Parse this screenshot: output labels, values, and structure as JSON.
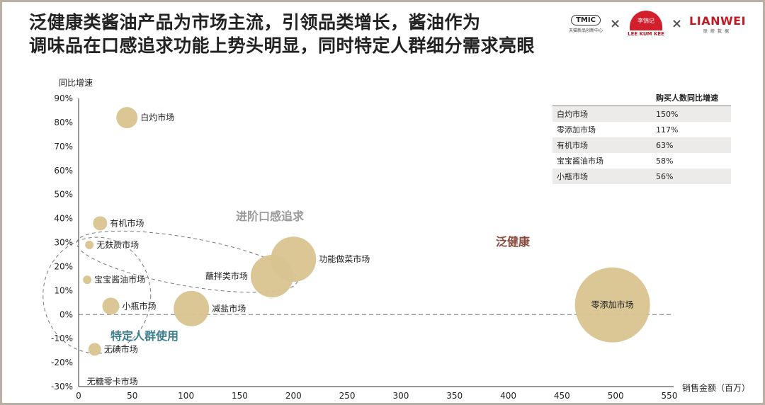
{
  "title": {
    "line1": "泛健康类酱油产品为市场主流，引领品类增长，酱油作为",
    "line2": "调味品在口感追求功能上势头明显，同时特定人群细分需求亮眼"
  },
  "logos": {
    "tmic_text": "TMIC",
    "tmic_caption": "天猫新品创新中心",
    "lkk_seal": "李锦记",
    "lkk_caption": "LEE KUM KEE",
    "lianwei_text": "LIANWEI",
    "lianwei_caption": "联蔚数据",
    "separator": "×"
  },
  "chart_data": {
    "type": "scatter",
    "subtype": "bubble",
    "xlabel": "销售金额（百万）",
    "ylabel": "同比增速",
    "xlim": [
      0,
      550
    ],
    "ylim": [
      -30,
      90
    ],
    "x_ticks": [
      "0",
      "50",
      "100",
      "150",
      "200",
      "250",
      "300",
      "350",
      "400",
      "450",
      "500",
      "550"
    ],
    "y_ticks": [
      "90%",
      "80%",
      "70%",
      "60%",
      "50%",
      "40%",
      "30%",
      "20%",
      "10%",
      "0%",
      "-10%",
      "-20%",
      "-30%"
    ],
    "reference_line": {
      "y": 0,
      "style": "dashed"
    },
    "bubble_color": "#d8c48f",
    "points": [
      {
        "name": "白灼市场",
        "x": 45,
        "y": 82,
        "size": 15,
        "label_pos": "right"
      },
      {
        "name": "有机市场",
        "x": 20,
        "y": 38,
        "size": 10,
        "label_pos": "right"
      },
      {
        "name": "无麸质市场",
        "x": 10,
        "y": 29,
        "size": 6,
        "label_pos": "right"
      },
      {
        "name": "宝宝酱油市场",
        "x": 8,
        "y": 14.5,
        "size": 6,
        "label_pos": "right"
      },
      {
        "name": "小瓶市场",
        "x": 30,
        "y": 3.5,
        "size": 12,
        "label_pos": "right"
      },
      {
        "name": "无碘市场",
        "x": 15,
        "y": -14.5,
        "size": 9,
        "label_pos": "right"
      },
      {
        "name": "无糖零卡市场",
        "x": 5,
        "y": -28,
        "size": 0,
        "label_pos": "right"
      },
      {
        "name": "减盐市场",
        "x": 105,
        "y": 2.5,
        "size": 25,
        "label_pos": "right"
      },
      {
        "name": "蘸拌类市场",
        "x": 180,
        "y": 16,
        "size": 30,
        "label_pos": "left"
      },
      {
        "name": "功能做菜市场",
        "x": 200,
        "y": 23,
        "size": 32,
        "label_pos": "right"
      },
      {
        "name": "零添加市场",
        "x": 497,
        "y": 4,
        "size": 53,
        "label_pos": "center"
      }
    ],
    "groups": [
      {
        "label": "进阶口感追求",
        "color": "#9a9a9a"
      },
      {
        "label": "特定人群使用",
        "color": "#3c7f90"
      },
      {
        "label": "泛健康",
        "color": "#8b4a3c"
      }
    ]
  },
  "table": {
    "header": [
      "",
      "购买人数同比增速"
    ],
    "rows": [
      [
        "白灼市场",
        "150%"
      ],
      [
        "零添加市场",
        "117%"
      ],
      [
        "有机市场",
        "63%"
      ],
      [
        "宝宝酱油市场",
        "58%"
      ],
      [
        "小瓶市场",
        "56%"
      ]
    ]
  }
}
